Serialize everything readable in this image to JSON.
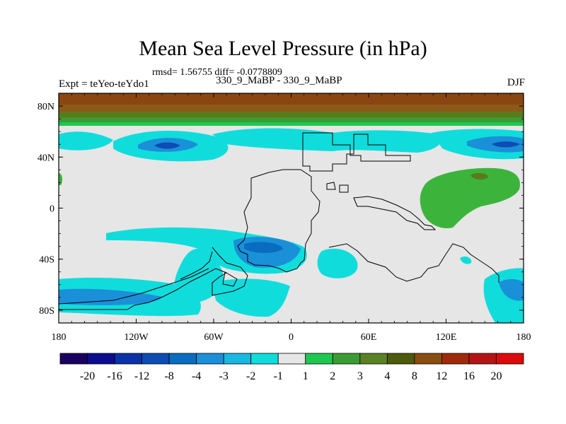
{
  "title": "Mean Sea Level Pressure (in hPa)",
  "stats": "rmsd= 1.56755 diff= -0.0778809",
  "expt_label": "Expt = teYeo-teYdo1",
  "comparison_label": "330_9_MaBP - 330_9_MaBP",
  "season_label": "DJF",
  "axes": {
    "x_ticks": [
      "180",
      "120W",
      "60W",
      "0",
      "60E",
      "120E",
      "180"
    ],
    "y_ticks": [
      "80N",
      "40N",
      "0",
      "40S",
      "80S"
    ]
  },
  "colorbar": {
    "levels": [
      "-20",
      "-16",
      "-12",
      "-8",
      "-4",
      "-3",
      "-2",
      "-1",
      "1",
      "2",
      "3",
      "4",
      "8",
      "12",
      "16",
      "20"
    ],
    "colors": [
      "#1a0060",
      "#0c0c90",
      "#0a32a8",
      "#0c4cb4",
      "#0a6cc0",
      "#1a90d8",
      "#18b8e0",
      "#10dcdc",
      "#e6e6e6",
      "#1ec850",
      "#3c9c34",
      "#5a8224",
      "#4e5a0c",
      "#8a4e10",
      "#9e2a0a",
      "#b41414",
      "#dc0a0a"
    ]
  },
  "colors": {
    "ocean_neutral": "#e6e6e6",
    "cyan": "#10dcdc",
    "mid_blue": "#1a90d8",
    "blue": "#0a6cc0",
    "deep_blue": "#0c4cb4",
    "green": "#3cb43c",
    "olive": "#5a7a1c",
    "brown": "#8a4610",
    "outline": "#000000"
  }
}
